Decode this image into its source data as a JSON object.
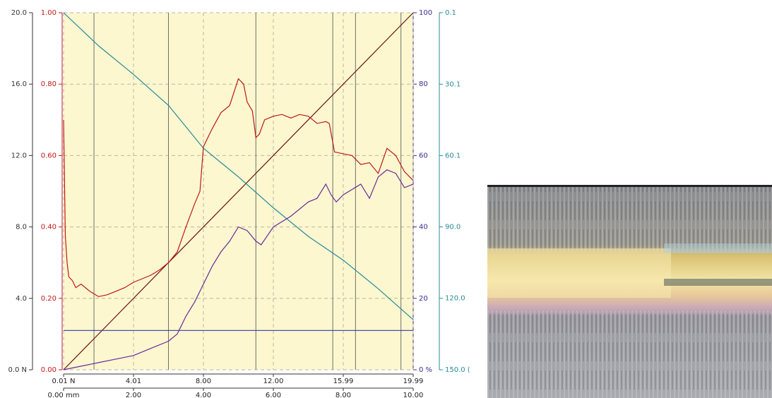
{
  "chart_data": {
    "type": "line",
    "xlim": [
      0,
      20
    ],
    "xticks": [
      {
        "value": 0,
        "label": "0.01 N"
      },
      {
        "value": 4,
        "label": "4.01"
      },
      {
        "value": 8,
        "label": "8.00"
      },
      {
        "value": 12,
        "label": "12.00"
      },
      {
        "value": 16,
        "label": "15.99"
      },
      {
        "value": 20,
        "label": "19.99"
      }
    ],
    "x2lim": [
      0,
      10
    ],
    "x2ticks": [
      {
        "value": 0,
        "label": "0.00 mm"
      },
      {
        "value": 2,
        "label": "2.00"
      },
      {
        "value": 4,
        "label": "4.00"
      },
      {
        "value": 6,
        "label": "6.00"
      },
      {
        "value": 8,
        "label": "8.00"
      },
      {
        "value": 10,
        "label": "10.00"
      }
    ],
    "ylim": [
      0,
      20
    ],
    "yticks": [
      {
        "value": 0,
        "label": "0.0 N"
      },
      {
        "value": 4,
        "label": "4.0"
      },
      {
        "value": 8,
        "label": "8.0"
      },
      {
        "value": 12,
        "label": "12.0"
      },
      {
        "value": 16,
        "label": "16.0"
      },
      {
        "value": 20,
        "label": "20.0"
      }
    ],
    "y3lim": [
      0,
      1
    ],
    "y3ticks": [
      {
        "value": 0,
        "label": "0.00"
      },
      {
        "value": 0.2,
        "label": "0.20"
      },
      {
        "value": 0.4,
        "label": "0.40"
      },
      {
        "value": 0.6,
        "label": "0.60"
      },
      {
        "value": 0.8,
        "label": "0.80"
      },
      {
        "value": 1,
        "label": "1.00"
      }
    ],
    "y2lim": [
      0,
      100
    ],
    "y2ticks": [
      {
        "value": 0,
        "label": "0 %"
      },
      20,
      40,
      60,
      80,
      100
    ],
    "y4lim": [
      150,
      0.1
    ],
    "y4ticks": [
      {
        "value": 150,
        "label": "150.0 ("
      },
      {
        "value": 120,
        "label": "120.0"
      },
      {
        "value": 90,
        "label": "90.0"
      },
      {
        "value": 60.1,
        "label": "60.1"
      },
      {
        "value": 30.1,
        "label": "30.1"
      },
      0.1
    ],
    "grid": true,
    "markers": [
      1.74,
      6.0,
      11.0,
      15.4,
      16.7,
      19.3
    ],
    "series": [
      {
        "color": "#6b1010",
        "axis": "y",
        "x": [
          0,
          20
        ],
        "values": [
          0,
          20
        ]
      },
      {
        "color": "#2a8a9a",
        "axis": "y4",
        "x": [
          0,
          2,
          4,
          6,
          8,
          10,
          12,
          14,
          16,
          18,
          20
        ],
        "values": [
          0.1,
          14,
          26,
          39,
          57,
          69,
          82,
          94,
          104,
          116,
          129
        ]
      },
      {
        "color": "#3c3ca0",
        "axis": "y2",
        "x": [
          0,
          20
        ],
        "values": [
          11,
          11
        ]
      },
      {
        "color": "#6a2aa0",
        "axis": "y2",
        "x": [
          0,
          1,
          2,
          3,
          4,
          5,
          6,
          6.5,
          7,
          7.5,
          8,
          8.5,
          9,
          9.5,
          10,
          10.5,
          11,
          11.3,
          12,
          13,
          14,
          14.5,
          15,
          15.3,
          15.6,
          16,
          17,
          17.5,
          18,
          18.5,
          19,
          19.5,
          20
        ],
        "values": [
          0,
          1,
          2,
          3,
          4,
          6,
          8,
          10,
          15,
          19,
          24,
          29,
          33,
          36,
          40,
          39,
          36,
          35,
          40,
          43,
          47,
          48,
          52,
          49,
          47,
          49,
          52,
          48,
          54,
          56,
          55,
          51,
          52
        ]
      },
      {
        "color": "#c01818",
        "axis": "y",
        "x": [
          0,
          0.1,
          0.2,
          0.3,
          0.5,
          0.7,
          1,
          1.5,
          2,
          2.5,
          3,
          3.5,
          4,
          4.5,
          5,
          5.5,
          6,
          6.5,
          7,
          7.5,
          7.8,
          8,
          8.5,
          9,
          9.5,
          10,
          10.3,
          10.5,
          10.8,
          11,
          11.2,
          11.5,
          12,
          12.5,
          13,
          13.5,
          14,
          14.5,
          15,
          15.2,
          15.5,
          16,
          16.5,
          17,
          17.5,
          18,
          18.5,
          19,
          19.5,
          20
        ],
        "values": [
          14,
          7.5,
          6,
          5.2,
          5,
          4.6,
          4.8,
          4.4,
          4.1,
          4.2,
          4.4,
          4.6,
          4.9,
          5.1,
          5.3,
          5.6,
          6,
          6.6,
          8,
          9.3,
          10,
          12.5,
          13.5,
          14.4,
          14.8,
          16.3,
          16,
          15,
          14.5,
          13,
          13.2,
          14,
          14.2,
          14.3,
          14.1,
          14.3,
          14.2,
          13.8,
          13.9,
          13.8,
          12.2,
          12.1,
          12,
          11.5,
          11.6,
          11,
          12.4,
          12,
          11.1,
          10.6
        ]
      }
    ]
  }
}
